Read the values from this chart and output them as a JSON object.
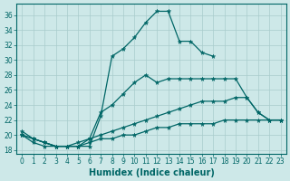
{
  "xlabel": "Humidex (Indice chaleur)",
  "xlim": [
    -0.5,
    23.5
  ],
  "ylim": [
    17.5,
    37.5
  ],
  "yticks": [
    18,
    20,
    22,
    24,
    26,
    28,
    30,
    32,
    34,
    36
  ],
  "xticks": [
    0,
    1,
    2,
    3,
    4,
    5,
    6,
    7,
    8,
    9,
    10,
    11,
    12,
    13,
    14,
    15,
    16,
    17,
    18,
    19,
    20,
    21,
    22,
    23
  ],
  "background_color": "#cde8e8",
  "grid_color": "#a8cccc",
  "line_color": "#006666",
  "lines": [
    {
      "x": [
        0,
        1,
        2,
        3,
        4,
        5,
        6,
        7,
        8,
        9,
        10,
        11,
        12,
        13,
        14,
        15,
        16,
        17,
        18,
        19,
        20,
        21,
        22,
        23
      ],
      "y": [
        20.5,
        19.5,
        19.0,
        18.5,
        18.5,
        18.5,
        18.5,
        22.5,
        30.5,
        31.5,
        33.0,
        35.0,
        36.5,
        36.5,
        32.5,
        32.5,
        31.0,
        30.5,
        null,
        null,
        null,
        null,
        null,
        null
      ]
    },
    {
      "x": [
        0,
        1,
        2,
        3,
        4,
        5,
        6,
        7,
        8,
        9,
        10,
        11,
        12,
        13,
        14,
        15,
        16,
        17,
        18,
        19,
        20,
        21,
        22,
        23
      ],
      "y": [
        20.0,
        19.5,
        19.0,
        18.5,
        18.5,
        18.5,
        19.5,
        23.0,
        24.0,
        25.5,
        27.0,
        28.0,
        27.0,
        27.5,
        27.5,
        27.5,
        27.5,
        27.5,
        27.5,
        27.5,
        25.0,
        23.0,
        22.0,
        22.0
      ]
    },
    {
      "x": [
        0,
        1,
        2,
        3,
        4,
        5,
        6,
        7,
        8,
        9,
        10,
        11,
        12,
        13,
        14,
        15,
        16,
        17,
        18,
        19,
        20,
        21,
        22,
        23
      ],
      "y": [
        20.0,
        19.5,
        19.0,
        18.5,
        18.5,
        19.0,
        19.5,
        20.0,
        20.5,
        21.0,
        21.5,
        22.0,
        22.5,
        23.0,
        23.5,
        24.0,
        24.5,
        24.5,
        24.5,
        25.0,
        25.0,
        23.0,
        22.0,
        22.0
      ]
    },
    {
      "x": [
        0,
        1,
        2,
        3,
        4,
        5,
        6,
        7,
        8,
        9,
        10,
        11,
        12,
        13,
        14,
        15,
        16,
        17,
        18,
        19,
        20,
        21,
        22,
        23
      ],
      "y": [
        20.0,
        19.0,
        18.5,
        18.5,
        18.5,
        18.5,
        19.0,
        19.5,
        19.5,
        20.0,
        20.0,
        20.5,
        21.0,
        21.0,
        21.5,
        21.5,
        21.5,
        21.5,
        22.0,
        22.0,
        22.0,
        22.0,
        22.0,
        22.0
      ]
    }
  ]
}
